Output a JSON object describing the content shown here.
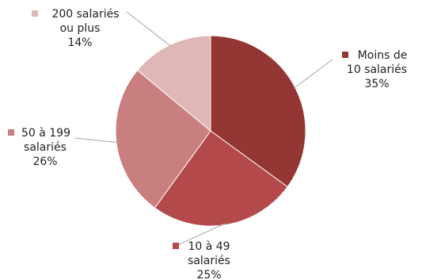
{
  "chart_data": {
    "type": "pie",
    "title": "",
    "legend": "none",
    "slices": [
      {
        "label_lines": [
          "Moins de",
          "10 salariés"
        ],
        "pct_text": "35%",
        "value": 35,
        "color": "#943634"
      },
      {
        "label_lines": [
          "10 à 49",
          "salariés"
        ],
        "pct_text": "25%",
        "value": 25,
        "color": "#b3494a"
      },
      {
        "label_lines": [
          "50 à 199",
          "salariés"
        ],
        "pct_text": "26%",
        "value": 26,
        "color": "#c97f7e"
      },
      {
        "label_lines": [
          "200 salariés",
          "ou plus"
        ],
        "pct_text": "14%",
        "value": 14,
        "color": "#dfb7b6"
      }
    ]
  }
}
